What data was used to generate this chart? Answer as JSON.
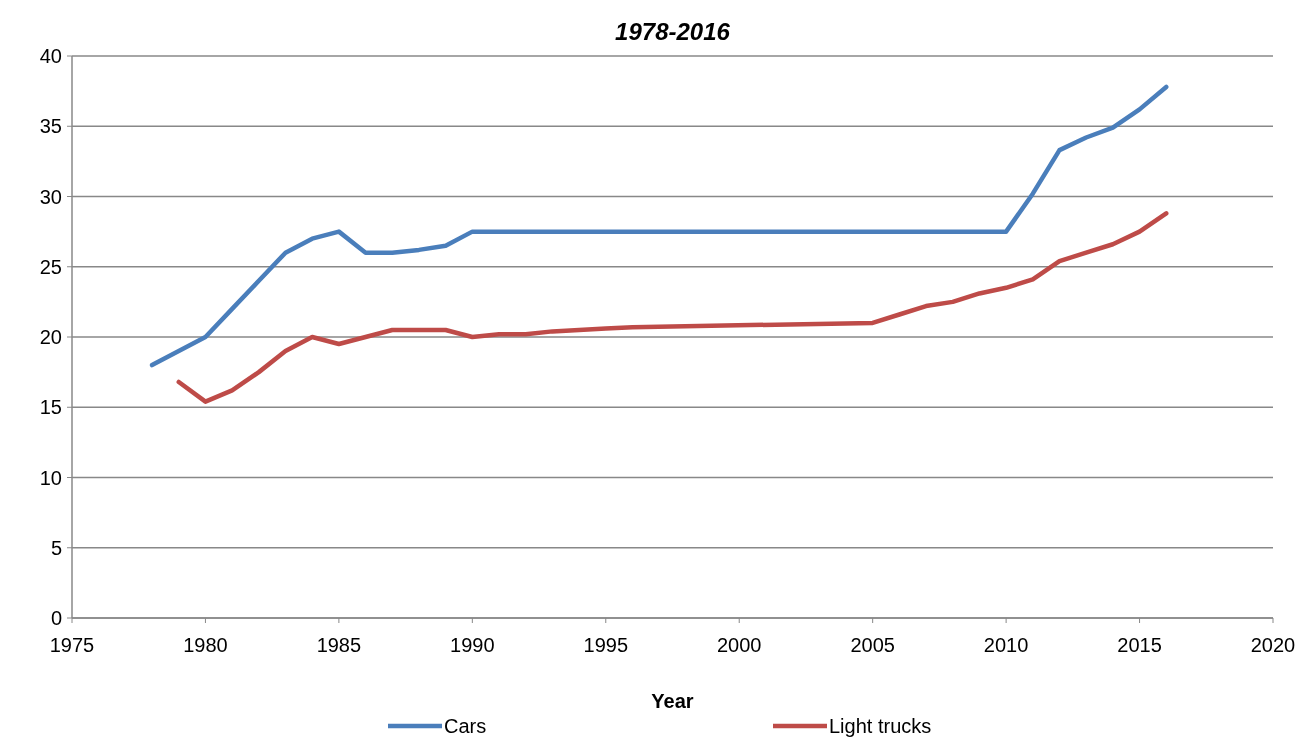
{
  "chart_data": {
    "type": "line",
    "title": "1978-2016",
    "xlabel": "Year",
    "xlim": [
      1975,
      2020
    ],
    "xticks": [
      1975,
      1980,
      1985,
      1990,
      1995,
      2000,
      2005,
      2010,
      2015,
      2020
    ],
    "ylim": [
      0,
      40
    ],
    "yticks": [
      0,
      5,
      10,
      15,
      20,
      25,
      30,
      35,
      40
    ],
    "grid": "y",
    "legend": "bottom",
    "marker": "none",
    "series": [
      {
        "name": "Cars",
        "color": "#4a7ebb",
        "x": [
          1978,
          1979,
          1980,
          1981,
          1982,
          1983,
          1984,
          1985,
          1986,
          1987,
          1988,
          1989,
          1990,
          2010,
          2011,
          2012,
          2013,
          2014,
          2015,
          2016
        ],
        "values": [
          18,
          19,
          20,
          22,
          24,
          26,
          27,
          27.5,
          26,
          26,
          26.2,
          26.5,
          27.5,
          27.5,
          30.2,
          33.3,
          34.2,
          34.9,
          36.2,
          37.8
        ]
      },
      {
        "name": "Light trucks",
        "color": "#be4b48",
        "x": [
          1979,
          1980,
          1981,
          1982,
          1983,
          1984,
          1985,
          1986,
          1987,
          1988,
          1989,
          1990,
          1991,
          1992,
          1993,
          1994,
          1995,
          1996,
          2005,
          2006,
          2007,
          2008,
          2009,
          2010,
          2011,
          2012,
          2013,
          2014,
          2015,
          2016
        ],
        "values": [
          16.8,
          15.4,
          16.2,
          17.5,
          19,
          20,
          19.5,
          20,
          20.5,
          20.5,
          20.5,
          20,
          20.2,
          20.2,
          20.4,
          20.5,
          20.6,
          20.7,
          21,
          21.6,
          22.2,
          22.5,
          23.1,
          23.5,
          24.1,
          25.4,
          26,
          26.6,
          27.5,
          28.8
        ]
      }
    ]
  }
}
